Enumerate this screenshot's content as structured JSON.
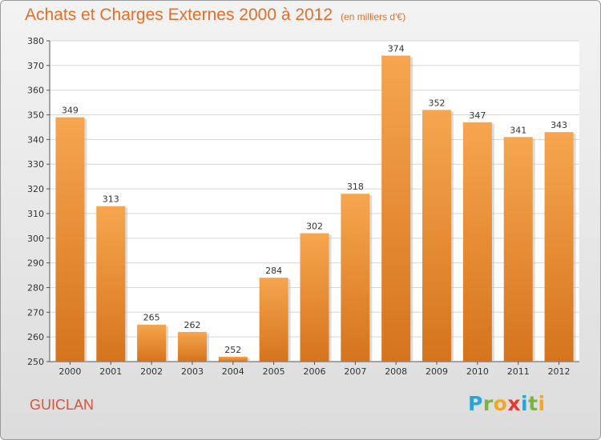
{
  "header": {
    "title": "Achats et Charges Externes 2000 à 2012",
    "unit": "(en milliers d'€)"
  },
  "footer": {
    "commune": "GUICLAN",
    "logo_letters": [
      "P",
      "r",
      "o",
      "x",
      "i",
      "t",
      "i"
    ],
    "logo_colors": [
      "#2aa3d8",
      "#7cb342",
      "#f5a623",
      "#e53935",
      "#2aa3d8",
      "#7cb342",
      "#f5a623"
    ]
  },
  "colors": {
    "bar_top": "#f6a64f",
    "bar_bottom": "#d5741d",
    "title": "#e06f2a",
    "commune": "#d4563c"
  },
  "chart_data": {
    "type": "bar",
    "title": "Achats et Charges Externes 2000 à 2012",
    "subtitle": "(en milliers d'€)",
    "xlabel": "",
    "ylabel": "",
    "categories": [
      "2000",
      "2001",
      "2002",
      "2003",
      "2004",
      "2005",
      "2006",
      "2007",
      "2008",
      "2009",
      "2010",
      "2011",
      "2012"
    ],
    "values": [
      349,
      313,
      265,
      262,
      252,
      284,
      302,
      318,
      374,
      352,
      347,
      341,
      343
    ],
    "ylim": [
      250,
      380
    ],
    "yticks": [
      250,
      260,
      270,
      280,
      290,
      300,
      310,
      320,
      330,
      340,
      350,
      360,
      370,
      380
    ],
    "grid": true,
    "data_labels": true
  }
}
